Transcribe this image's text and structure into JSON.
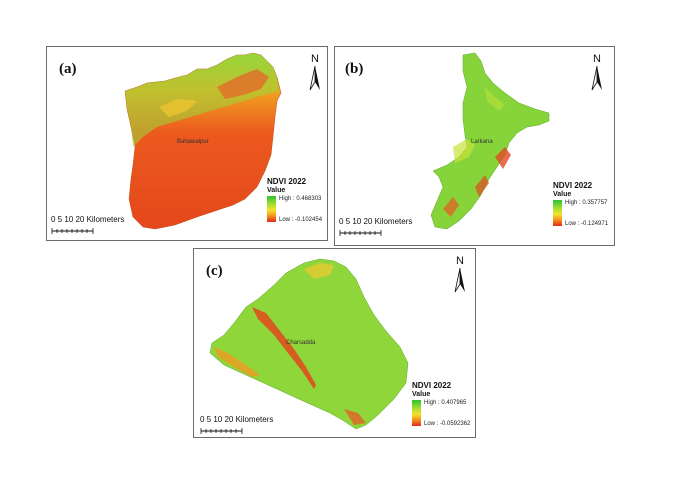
{
  "panels": [
    {
      "label": "(a)",
      "city": "Bahawalpur",
      "legend": {
        "title": "NDVI 2022",
        "subtitle": "Value",
        "high": "High : 0.468303",
        "low": "Low : -0.102454"
      },
      "scale": {
        "text": "0   5  10      20 Kilometers"
      },
      "north": "N"
    },
    {
      "label": "(b)",
      "city": "Larkana",
      "legend": {
        "title": "NDVI 2022",
        "subtitle": "Value",
        "high": "High : 0.357757",
        "low": "Low : -0.124971"
      },
      "scale": {
        "text": "0   5  10      20 Kilometers"
      },
      "north": "N"
    },
    {
      "label": "(c)",
      "city": "Charsadda",
      "legend": {
        "title": "NDVI 2022",
        "subtitle": "Value",
        "high": "High : 0.407965",
        "low": "Low : -0.0592362"
      },
      "scale": {
        "text": "0   5  10      20 Kilometers"
      },
      "north": "N"
    }
  ],
  "colors": {
    "high": "#2ec02e",
    "mid": "#f2e32a",
    "low": "#e02a1a",
    "border": "#6b6b6b"
  }
}
